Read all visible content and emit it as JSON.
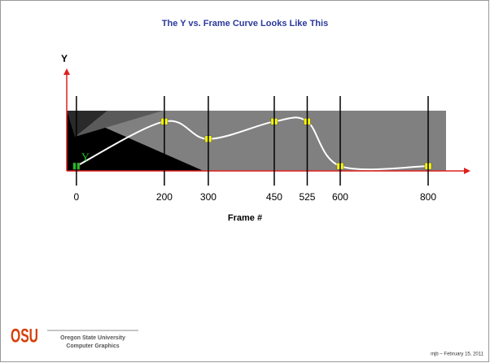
{
  "chart_data": {
    "type": "line",
    "title": "The Y vs. Frame Curve Looks Like This",
    "x_label": "Frame #",
    "y_label": "Y",
    "curve_label": "Y",
    "x": [
      0,
      200,
      300,
      450,
      525,
      600,
      800
    ],
    "values": [
      0.08,
      0.82,
      0.53,
      0.82,
      0.82,
      0.08,
      0.08
    ],
    "color": "#ffffff",
    "xlim": [
      -22,
      800
    ],
    "ylim": [
      0,
      1
    ],
    "xticks": [
      0,
      200,
      300,
      450,
      525,
      600,
      800
    ]
  },
  "footer": {
    "logo": "OSU",
    "university": "Oregon State University",
    "department": "Computer Graphics",
    "credit": "mjb – February 15, 2011"
  }
}
